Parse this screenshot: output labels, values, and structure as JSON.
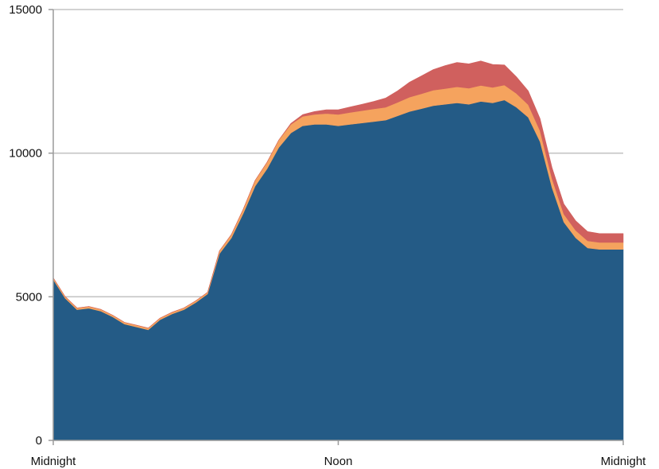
{
  "chart_data": {
    "type": "area",
    "stacked": true,
    "title": "",
    "xlabel": "",
    "ylabel": "",
    "ylim": [
      0,
      15000
    ],
    "yticks": [
      0,
      5000,
      10000,
      15000
    ],
    "xlim": [
      0,
      24
    ],
    "xticks": [
      {
        "value": 0,
        "label": "Midnight"
      },
      {
        "value": 12,
        "label": "Noon"
      },
      {
        "value": 24,
        "label": "Midnight"
      }
    ],
    "grid": true,
    "legend": "none",
    "x": [
      0,
      0.5,
      1,
      1.5,
      2,
      2.5,
      3,
      3.5,
      4,
      4.5,
      5,
      5.5,
      6,
      6.5,
      7,
      7.5,
      8,
      8.5,
      9,
      9.5,
      10,
      10.5,
      11,
      11.5,
      12,
      12.5,
      13,
      13.5,
      14,
      14.5,
      15,
      15.5,
      16,
      16.5,
      17,
      17.5,
      18,
      18.5,
      19,
      19.5,
      20,
      20.5,
      21,
      21.5,
      22,
      22.5,
      23,
      23.5,
      24
    ],
    "series": [
      {
        "color": "#245b86",
        "values": [
          5600,
          4950,
          4550,
          4600,
          4500,
          4300,
          4050,
          3950,
          3850,
          4200,
          4400,
          4550,
          4800,
          5100,
          6500,
          7050,
          7900,
          8850,
          9450,
          10200,
          10700,
          10950,
          11000,
          11000,
          10950,
          11000,
          11050,
          11100,
          11150,
          11300,
          11450,
          11550,
          11650,
          11700,
          11750,
          11700,
          11800,
          11750,
          11850,
          11600,
          11250,
          10400,
          8800,
          7600,
          7050,
          6700,
          6650,
          6650,
          6650
        ]
      },
      {
        "color": "#f5a35e",
        "values": [
          60,
          60,
          60,
          60,
          60,
          60,
          60,
          60,
          60,
          60,
          60,
          60,
          60,
          60,
          100,
          120,
          150,
          200,
          230,
          260,
          300,
          330,
          350,
          380,
          400,
          420,
          430,
          440,
          450,
          470,
          500,
          520,
          540,
          550,
          560,
          560,
          560,
          540,
          520,
          480,
          440,
          380,
          320,
          280,
          260,
          250,
          240,
          240,
          240
        ]
      },
      {
        "color": "#d0605e",
        "values": [
          0,
          0,
          0,
          0,
          0,
          0,
          0,
          0,
          0,
          0,
          0,
          0,
          0,
          0,
          0,
          0,
          0,
          0,
          0,
          0,
          30,
          60,
          100,
          130,
          160,
          190,
          220,
          260,
          320,
          400,
          520,
          620,
          720,
          800,
          850,
          850,
          850,
          800,
          700,
          580,
          480,
          420,
          380,
          350,
          330,
          320,
          310,
          310,
          310
        ]
      }
    ]
  }
}
